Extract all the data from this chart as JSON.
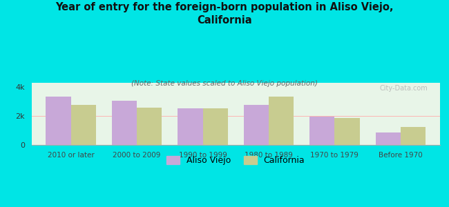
{
  "title": "Year of entry for the foreign-born population in Aliso Viejo,\nCalifornia",
  "subtitle": "(Note: State values scaled to Aliso Viejo population)",
  "categories": [
    "2010 or later",
    "2000 to 2009",
    "1990 to 1999",
    "1980 to 1989",
    "1970 to 1979",
    "Before 1970"
  ],
  "aliso_viejo": [
    3350,
    3050,
    2550,
    2750,
    1950,
    850
  ],
  "california": [
    2750,
    2600,
    2550,
    3350,
    1850,
    1250
  ],
  "aliso_color": "#c8a8d8",
  "california_color": "#c8cc90",
  "background_color": "#00e5e5",
  "plot_bg_top": "#e8f5e8",
  "plot_bg_bottom": "#f5faf5",
  "title_fontsize": 10.5,
  "subtitle_fontsize": 7.5,
  "legend_labels": [
    "Aliso Viejo",
    "California"
  ],
  "ylim": [
    0,
    4300
  ],
  "ytick_labels": [
    "0",
    "2k",
    "4k"
  ],
  "ytick_values": [
    0,
    2000,
    4000
  ],
  "bar_width": 0.38,
  "watermark": "City-Data.com"
}
